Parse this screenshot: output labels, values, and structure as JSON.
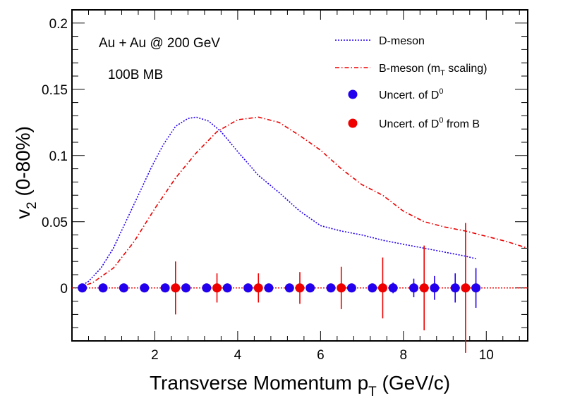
{
  "chart_data": {
    "type": "line",
    "xlim": [
      0,
      11
    ],
    "ylim": [
      -0.04,
      0.21
    ],
    "x_ticks": [
      2,
      4,
      6,
      8,
      10
    ],
    "y_ticks": [
      0,
      0.05,
      0.1,
      0.15,
      0.2
    ],
    "y_tick_labels": [
      "0",
      "0.05",
      "0.1",
      "0.15",
      "0.2"
    ],
    "xlabel": "Transverse Momentum p",
    "xlabel_sub": "T",
    "xlabel_suffix": " (GeV/c)",
    "ylabel": "v",
    "ylabel_sub": "2",
    "ylabel_suffix": " (0-80%)",
    "annotations": [
      "Au + Au @ 200 GeV",
      "100B MB"
    ],
    "legend_placement": "top-right",
    "legend": [
      {
        "kind": "line",
        "style": "dotted",
        "color": "#2200ee",
        "label": "D-meson"
      },
      {
        "kind": "line",
        "style": "dashdot",
        "color": "#ee0000",
        "label_pre": "B-meson (m",
        "label_sub": "T",
        "label_post": " scaling)"
      },
      {
        "kind": "marker",
        "color": "#2200ee",
        "label_pre": "Uncert. of D",
        "label_sup": "0"
      },
      {
        "kind": "marker",
        "color": "#ee0000",
        "label_pre": "Uncert. of D",
        "label_sup": "0",
        "label_post": " from B"
      }
    ],
    "series": [
      {
        "name": "D-meson",
        "kind": "line",
        "style": "dotted",
        "color": "#2200ee",
        "x": [
          0.15,
          0.4,
          0.7,
          1.0,
          1.3,
          1.6,
          1.9,
          2.2,
          2.5,
          2.8,
          3.0,
          3.3,
          3.6,
          4.0,
          4.5,
          5.0,
          5.5,
          6.0,
          6.5,
          7.0,
          7.5,
          8.0,
          8.5,
          9.0,
          9.5,
          9.75
        ],
        "y": [
          0.0,
          0.005,
          0.015,
          0.03,
          0.05,
          0.07,
          0.09,
          0.108,
          0.122,
          0.128,
          0.129,
          0.126,
          0.118,
          0.103,
          0.085,
          0.072,
          0.058,
          0.047,
          0.043,
          0.04,
          0.036,
          0.033,
          0.03,
          0.027,
          0.024,
          0.022
        ]
      },
      {
        "name": "B-meson (mT scaling)",
        "kind": "line",
        "style": "dashdot",
        "color": "#ee0000",
        "x": [
          0.15,
          0.5,
          1.0,
          1.5,
          2.0,
          2.5,
          3.0,
          3.5,
          4.0,
          4.5,
          5.0,
          5.5,
          6.0,
          6.5,
          7.0,
          7.5,
          8.0,
          8.5,
          9.0,
          9.5,
          10.0,
          10.5,
          11.0
        ],
        "y": [
          0.0,
          0.004,
          0.015,
          0.035,
          0.06,
          0.083,
          0.102,
          0.118,
          0.127,
          0.129,
          0.125,
          0.115,
          0.104,
          0.09,
          0.078,
          0.07,
          0.058,
          0.05,
          0.046,
          0.043,
          0.039,
          0.035,
          0.03
        ]
      },
      {
        "name": "Uncert. of D0",
        "kind": "points",
        "color": "#2200ee",
        "x": [
          0.25,
          0.75,
          1.25,
          1.75,
          2.25,
          2.75,
          3.25,
          3.75,
          4.25,
          4.75,
          5.25,
          5.75,
          6.25,
          6.75,
          7.25,
          7.75,
          8.25,
          8.75,
          9.25,
          9.75
        ],
        "y": [
          0,
          0,
          0,
          0,
          0,
          0,
          0,
          0,
          0,
          0,
          0,
          0,
          0,
          0,
          0,
          0,
          0,
          0,
          0,
          0
        ],
        "err": [
          0,
          0,
          0,
          0,
          0,
          0,
          0,
          0,
          0,
          0,
          0,
          0,
          0,
          0,
          0.0008,
          0.004,
          0.007,
          0.009,
          0.011,
          0.015
        ]
      },
      {
        "name": "Uncert. of D0 from B",
        "kind": "points",
        "color": "#ee0000",
        "x": [
          2.5,
          3.5,
          4.5,
          5.5,
          6.5,
          7.5,
          8.5,
          9.5
        ],
        "y": [
          0,
          0,
          0,
          0,
          0,
          0,
          0,
          0
        ],
        "err": [
          0.02,
          0.011,
          0.011,
          0.012,
          0.016,
          0.023,
          0.032,
          0.049
        ]
      }
    ],
    "zero_line": {
      "color": "#ee0000",
      "style": "dotted"
    }
  }
}
